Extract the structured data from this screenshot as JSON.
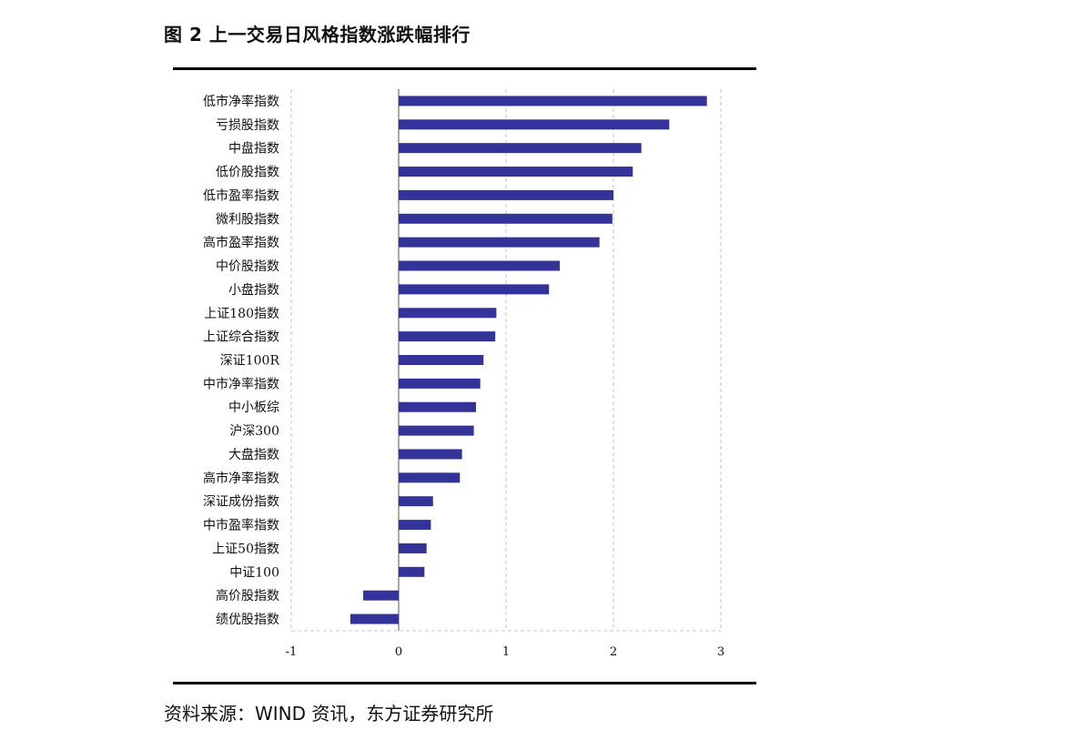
{
  "title": "图 2  上一交易日风格指数涨跌幅排行",
  "source": "资料来源：WIND 资讯，东方证券研究所",
  "colors": {
    "bar": "#33339a",
    "grid": "#b8b8b8",
    "axis": "#555555",
    "rule": "#000000"
  },
  "chart_data": {
    "type": "bar",
    "orientation": "horizontal",
    "title": "",
    "xlabel": "",
    "ylabel": "",
    "xlim": [
      -1,
      3
    ],
    "x_ticks": [
      -1,
      0,
      1,
      2,
      3
    ],
    "x_tick_labels": [
      "-1",
      "0",
      "1",
      "2",
      "3"
    ],
    "grid": "vertical dashed",
    "categories": [
      "低市净率指数",
      "亏损股指数",
      "中盘指数",
      "低价股指数",
      "低市盈率指数",
      "微利股指数",
      "高市盈率指数",
      "中价股指数",
      "小盘指数",
      "上证180指数",
      "上证综合指数",
      "深证100R",
      "中市净率指数",
      "中小板综",
      "沪深300",
      "大盘指数",
      "高市净率指数",
      "深证成份指数",
      "中市盈率指数",
      "上证50指数",
      "中证100",
      "高价股指数",
      "绩优股指数"
    ],
    "values": [
      2.87,
      2.52,
      2.26,
      2.18,
      2.0,
      1.99,
      1.87,
      1.5,
      1.4,
      0.91,
      0.9,
      0.79,
      0.76,
      0.72,
      0.7,
      0.59,
      0.57,
      0.32,
      0.3,
      0.26,
      0.24,
      -0.33,
      -0.45
    ]
  }
}
